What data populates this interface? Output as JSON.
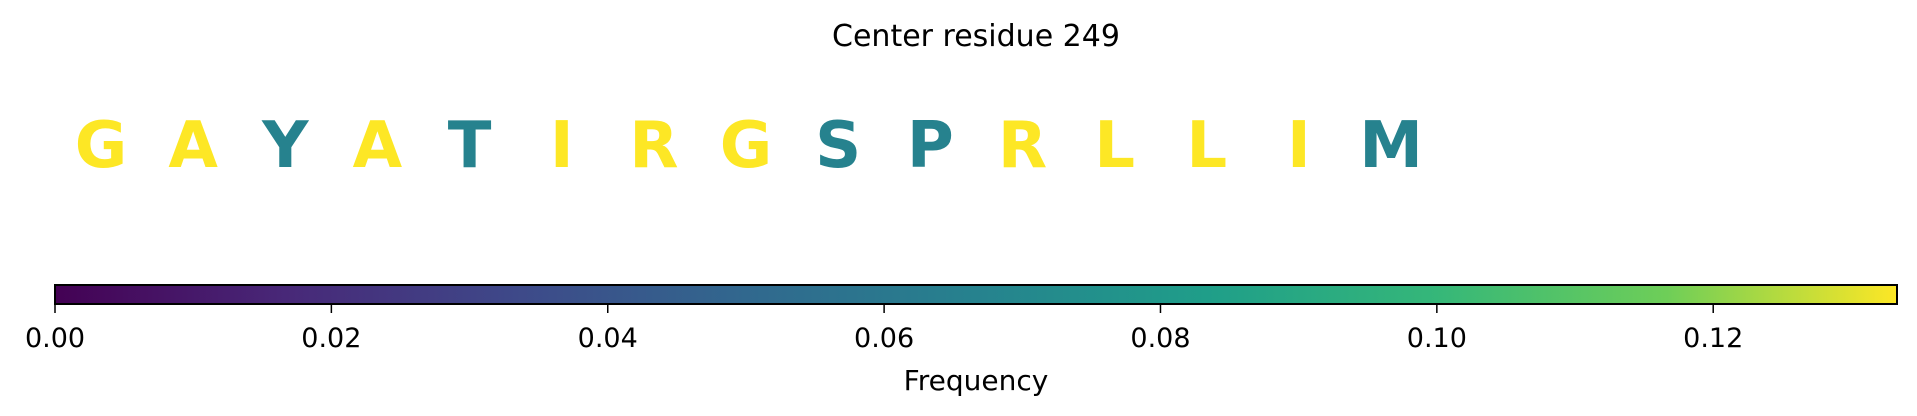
{
  "chart_data": {
    "type": "heatmap",
    "title": "Center residue 249",
    "residues": [
      "G",
      "A",
      "Y",
      "A",
      "T",
      "I",
      "R",
      "G",
      "S",
      "P",
      "R",
      "L",
      "L",
      "I",
      "M"
    ],
    "values": [
      0.1333,
      0.1333,
      0.0667,
      0.1333,
      0.0667,
      0.1333,
      0.1333,
      0.1333,
      0.0667,
      0.0667,
      0.1333,
      0.1333,
      0.1333,
      0.1333,
      0.0667
    ],
    "colormap": "viridis",
    "colorbar": {
      "label": "Frequency",
      "range": [
        0,
        0.1333
      ],
      "ticks": [
        0.0,
        0.02,
        0.04,
        0.06,
        0.08,
        0.1,
        0.12
      ],
      "tick_labels": [
        "0.00",
        "0.02",
        "0.04",
        "0.06",
        "0.08",
        "0.10",
        "0.12"
      ],
      "orientation": "horizontal",
      "placement": "bottom"
    }
  }
}
